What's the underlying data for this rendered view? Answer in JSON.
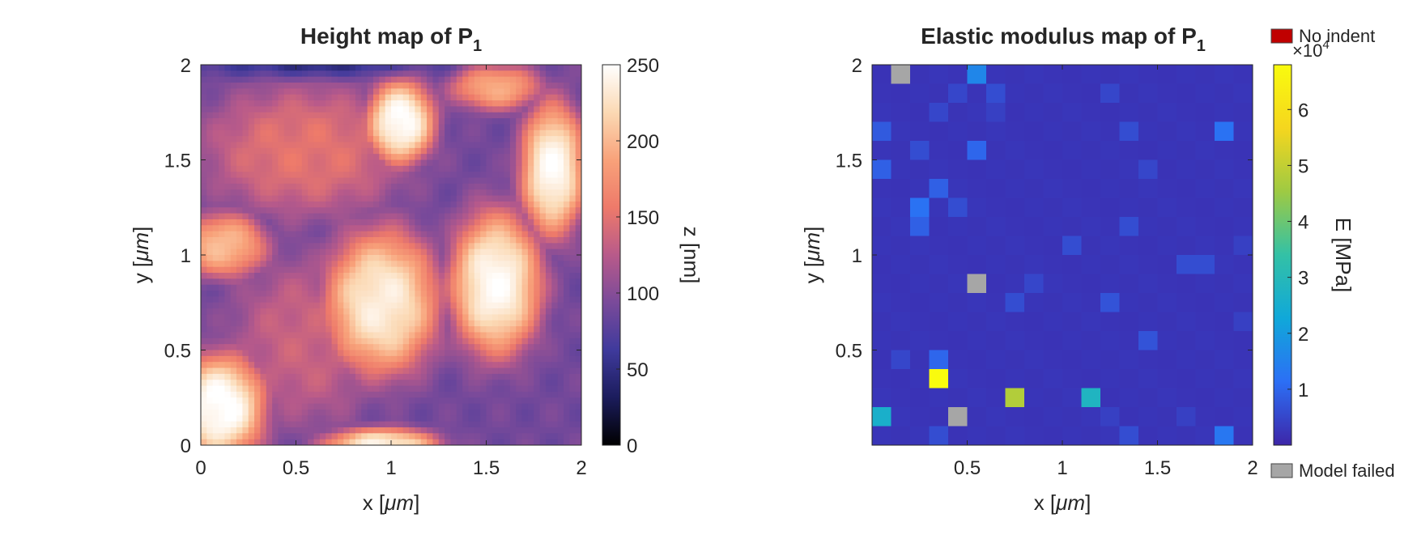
{
  "chart_data": [
    {
      "type": "heatmap",
      "title": "Height map of P",
      "title_subscript": "1",
      "xlabel_prefix": "x [",
      "xlabel_unit": "μm",
      "xlabel_suffix": "]",
      "ylabel_prefix": "y [",
      "ylabel_unit": "μm",
      "ylabel_suffix": "]",
      "xlim": [
        0,
        2
      ],
      "ylim": [
        0,
        2
      ],
      "xticks": [
        "0",
        "0.5",
        "1",
        "1.5",
        "2"
      ],
      "yticks": [
        "0",
        "0.5",
        "1",
        "1.5",
        "2"
      ],
      "colorbar_label": "z [nm]",
      "colorbar_range": [
        0,
        250
      ],
      "colorbar_ticks": [
        "0",
        "50",
        "100",
        "150",
        "200",
        "250"
      ],
      "colormap": [
        "#000000",
        "#1b1c5c",
        "#3f3a9c",
        "#7a4a9a",
        "#b85a8a",
        "#ee7a6a",
        "#f8a27a",
        "#fbd9b4",
        "#ffffff"
      ],
      "features": [
        {
          "x": 1.05,
          "y": 1.7,
          "height": 250,
          "rx": 0.18,
          "ry": 0.22
        },
        {
          "x": 1.85,
          "y": 1.45,
          "height": 245,
          "rx": 0.17,
          "ry": 0.35
        },
        {
          "x": 0.12,
          "y": 1.05,
          "height": 200,
          "rx": 0.23,
          "ry": 0.17
        },
        {
          "x": 0.95,
          "y": 0.75,
          "height": 235,
          "rx": 0.3,
          "ry": 0.38
        },
        {
          "x": 1.55,
          "y": 0.85,
          "height": 245,
          "rx": 0.24,
          "ry": 0.38
        },
        {
          "x": 0.1,
          "y": 0.2,
          "height": 252,
          "rx": 0.24,
          "ry": 0.28
        },
        {
          "x": 0.95,
          "y": 0.0,
          "height": 235,
          "rx": 0.3,
          "ry": 0.09
        },
        {
          "x": 1.55,
          "y": 1.88,
          "height": 190,
          "rx": 0.24,
          "ry": 0.12
        },
        {
          "x": 0.55,
          "y": 1.55,
          "height": 150,
          "rx": 0.55,
          "ry": 0.35
        },
        {
          "x": 0.55,
          "y": 0.55,
          "height": 135,
          "rx": 0.4,
          "ry": 0.45
        }
      ],
      "base_height": 90
    },
    {
      "type": "heatmap",
      "title": "Elastic modulus map of P",
      "title_subscript": "1",
      "xlabel_prefix": "x [",
      "xlabel_unit": "μm",
      "xlabel_suffix": "]",
      "ylabel_prefix": "y [",
      "ylabel_unit": "μm",
      "ylabel_suffix": "]",
      "xlim": [
        0,
        2
      ],
      "ylim": [
        0,
        2
      ],
      "xticks": [
        "0.5",
        "1",
        "1.5",
        "2"
      ],
      "yticks": [
        "0.5",
        "1",
        "1.5",
        "2"
      ],
      "colorbar_label": "E [MPa]",
      "colorbar_exponent_base": "×10",
      "colorbar_exponent": "4",
      "colorbar_ticks": [
        "1",
        "2",
        "3",
        "4",
        "5",
        "6"
      ],
      "colormap": [
        "#3d26a8",
        "#2c6ff5",
        "#10a8d9",
        "#33c1a6",
        "#9eca43",
        "#f5d61e",
        "#f9fb0e"
      ],
      "grid_size": 20,
      "base_value": 0.2,
      "cells": [
        {
          "col": 1,
          "row": 0,
          "status": "failed"
        },
        {
          "col": 5,
          "row": 0,
          "value": 1.6
        },
        {
          "col": 4,
          "row": 1,
          "value": 0.5
        },
        {
          "col": 6,
          "row": 1,
          "value": 0.6
        },
        {
          "col": 12,
          "row": 1,
          "value": 0.5
        },
        {
          "col": 3,
          "row": 2,
          "value": 0.5
        },
        {
          "col": 6,
          "row": 2,
          "value": 0.4
        },
        {
          "col": 0,
          "row": 3,
          "value": 0.8
        },
        {
          "col": 13,
          "row": 3,
          "value": 0.6
        },
        {
          "col": 18,
          "row": 3,
          "value": 1.2
        },
        {
          "col": 2,
          "row": 4,
          "value": 0.6
        },
        {
          "col": 5,
          "row": 4,
          "value": 1.0
        },
        {
          "col": 0,
          "row": 5,
          "value": 0.9
        },
        {
          "col": 14,
          "row": 5,
          "value": 0.5
        },
        {
          "col": 3,
          "row": 6,
          "value": 0.9
        },
        {
          "col": 2,
          "row": 7,
          "value": 1.2
        },
        {
          "col": 4,
          "row": 7,
          "value": 0.6
        },
        {
          "col": 2,
          "row": 8,
          "value": 0.9
        },
        {
          "col": 13,
          "row": 8,
          "value": 0.6
        },
        {
          "col": 10,
          "row": 9,
          "value": 0.6
        },
        {
          "col": 19,
          "row": 9,
          "value": 0.4
        },
        {
          "col": 16,
          "row": 10,
          "value": 0.6
        },
        {
          "col": 17,
          "row": 10,
          "value": 0.6
        },
        {
          "col": 5,
          "row": 11,
          "status": "failed"
        },
        {
          "col": 8,
          "row": 11,
          "value": 0.5
        },
        {
          "col": 7,
          "row": 12,
          "value": 0.6
        },
        {
          "col": 12,
          "row": 12,
          "value": 0.7
        },
        {
          "col": 19,
          "row": 13,
          "value": 0.4
        },
        {
          "col": 14,
          "row": 14,
          "value": 0.7
        },
        {
          "col": 1,
          "row": 15,
          "value": 0.5
        },
        {
          "col": 3,
          "row": 15,
          "value": 1.0
        },
        {
          "col": 3,
          "row": 16,
          "value": 6.8
        },
        {
          "col": 7,
          "row": 17,
          "value": 4.8
        },
        {
          "col": 11,
          "row": 17,
          "value": 2.8
        },
        {
          "col": 0,
          "row": 18,
          "value": 2.6
        },
        {
          "col": 4,
          "row": 18,
          "status": "failed"
        },
        {
          "col": 12,
          "row": 18,
          "value": 0.4
        },
        {
          "col": 16,
          "row": 18,
          "value": 0.4
        },
        {
          "col": 3,
          "row": 19,
          "value": 0.6
        },
        {
          "col": 13,
          "row": 19,
          "value": 0.6
        },
        {
          "col": 18,
          "row": 19,
          "value": 1.3
        }
      ],
      "legend": [
        {
          "label": "No indent",
          "color": "#c00000"
        },
        {
          "label": "Model failed",
          "color": "#a6a6a6"
        }
      ]
    }
  ]
}
